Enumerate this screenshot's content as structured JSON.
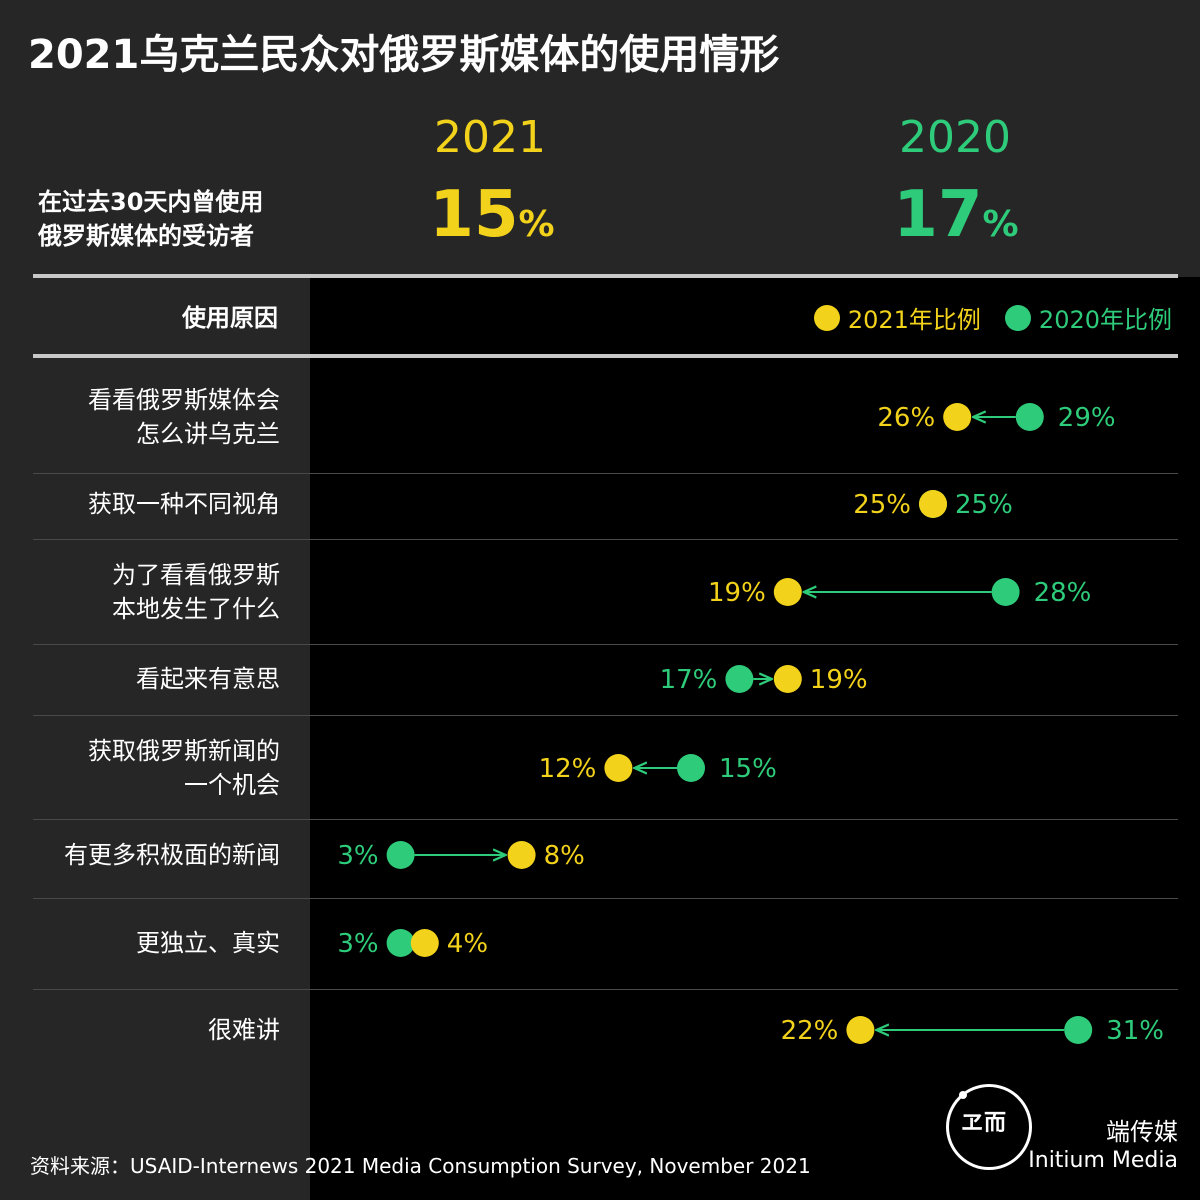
{
  "title": "2021乌克兰民众对俄罗斯媒体的使用情形",
  "summary": {
    "label_line1": "在过去30天内曾使用",
    "label_line2": "俄罗斯媒体的受访者",
    "year_2021": "2021",
    "year_2020": "2020",
    "value_2021": "15",
    "value_2020": "17",
    "pct_sign": "%"
  },
  "table_header": "使用原因",
  "legend": {
    "label_2021": "2021年比例",
    "label_2020": "2020年比例"
  },
  "colors": {
    "y2021": "#f2d21b",
    "y2020": "#2ecc7a",
    "panel": "#262626",
    "background": "#000000"
  },
  "chart_data": {
    "type": "dumbbell",
    "series": [
      {
        "name": "2021年比例",
        "values": [
          26,
          25,
          19,
          19,
          12,
          8,
          4,
          22
        ]
      },
      {
        "name": "2020年比例",
        "values": [
          29,
          25,
          28,
          17,
          15,
          3,
          3,
          31
        ]
      }
    ],
    "categories": [
      [
        "看看俄罗斯媒体会",
        "怎么讲乌克兰"
      ],
      [
        "获取一种不同视角"
      ],
      [
        "为了看看俄罗斯",
        "本地发生了什么"
      ],
      [
        "看起来有意思"
      ],
      [
        "获取俄罗斯新闻的",
        "一个机会"
      ],
      [
        "有更多积极面的新闻"
      ],
      [
        "更独立、真实"
      ],
      [
        "很难讲"
      ]
    ],
    "unit": "%"
  },
  "source": "资料来源：USAID-Internews 2021 Media Consumption Survey, November 2021",
  "brand": {
    "logo_text": "ヱ而",
    "name_cn": "端传媒",
    "name_en": "Initium Media"
  }
}
